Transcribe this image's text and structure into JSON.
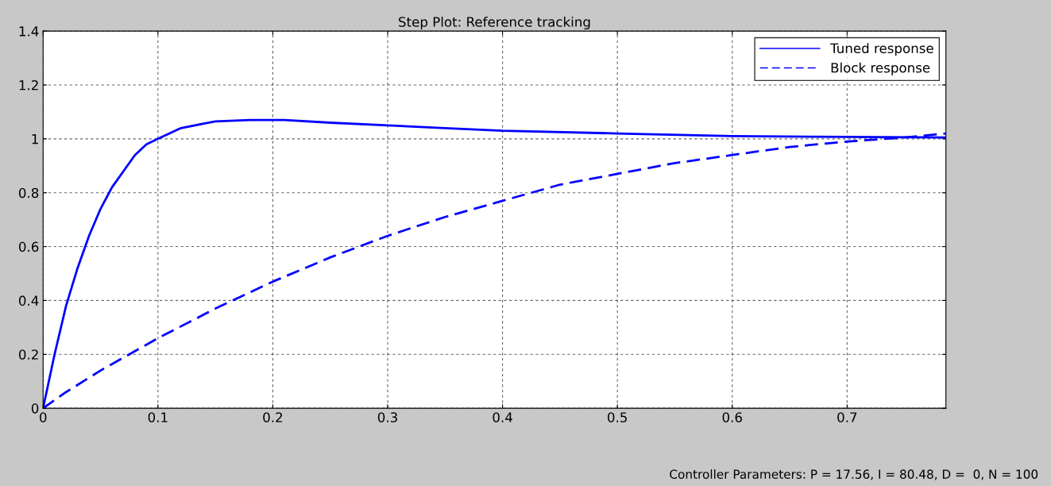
{
  "chart_data": {
    "type": "line",
    "title": "Step Plot: Reference tracking",
    "xlim": [
      0,
      0.786
    ],
    "xticks": [
      0,
      0.1,
      0.2,
      0.3,
      0.4,
      0.5,
      0.6,
      0.7
    ],
    "ylim": [
      0,
      1.4
    ],
    "yticks": [
      0,
      0.2,
      0.4,
      0.6,
      0.8,
      1,
      1.2,
      1.4
    ],
    "grid": true,
    "legend": "top right",
    "marker": "none",
    "series": [
      {
        "name": "Tuned response",
        "color": "#0000ff",
        "line_style": "solid",
        "x": [
          0,
          0.005,
          0.01,
          0.02,
          0.03,
          0.04,
          0.05,
          0.06,
          0.07,
          0.08,
          0.09,
          0.1,
          0.12,
          0.15,
          0.18,
          0.21,
          0.25,
          0.3,
          0.35,
          0.4,
          0.5,
          0.6,
          0.7,
          0.786
        ],
        "values": [
          0,
          0.1,
          0.2,
          0.38,
          0.52,
          0.64,
          0.74,
          0.82,
          0.88,
          0.94,
          0.98,
          1.0,
          1.04,
          1.065,
          1.07,
          1.07,
          1.06,
          1.05,
          1.04,
          1.03,
          1.02,
          1.01,
          1.007,
          1.005
        ]
      },
      {
        "name": "Block response",
        "color": "#0000ff",
        "line_style": "dashed",
        "x": [
          0,
          0.02,
          0.05,
          0.1,
          0.15,
          0.2,
          0.25,
          0.3,
          0.35,
          0.4,
          0.45,
          0.5,
          0.55,
          0.6,
          0.65,
          0.7,
          0.75,
          0.786
        ],
        "values": [
          0,
          0.06,
          0.14,
          0.26,
          0.37,
          0.47,
          0.56,
          0.64,
          0.71,
          0.77,
          0.83,
          0.87,
          0.91,
          0.94,
          0.97,
          0.99,
          1.005,
          1.02
        ]
      }
    ],
    "annotations": [
      "Controller Parameters: P = 17.56, I = 80.48, D =  0, N = 100"
    ]
  }
}
